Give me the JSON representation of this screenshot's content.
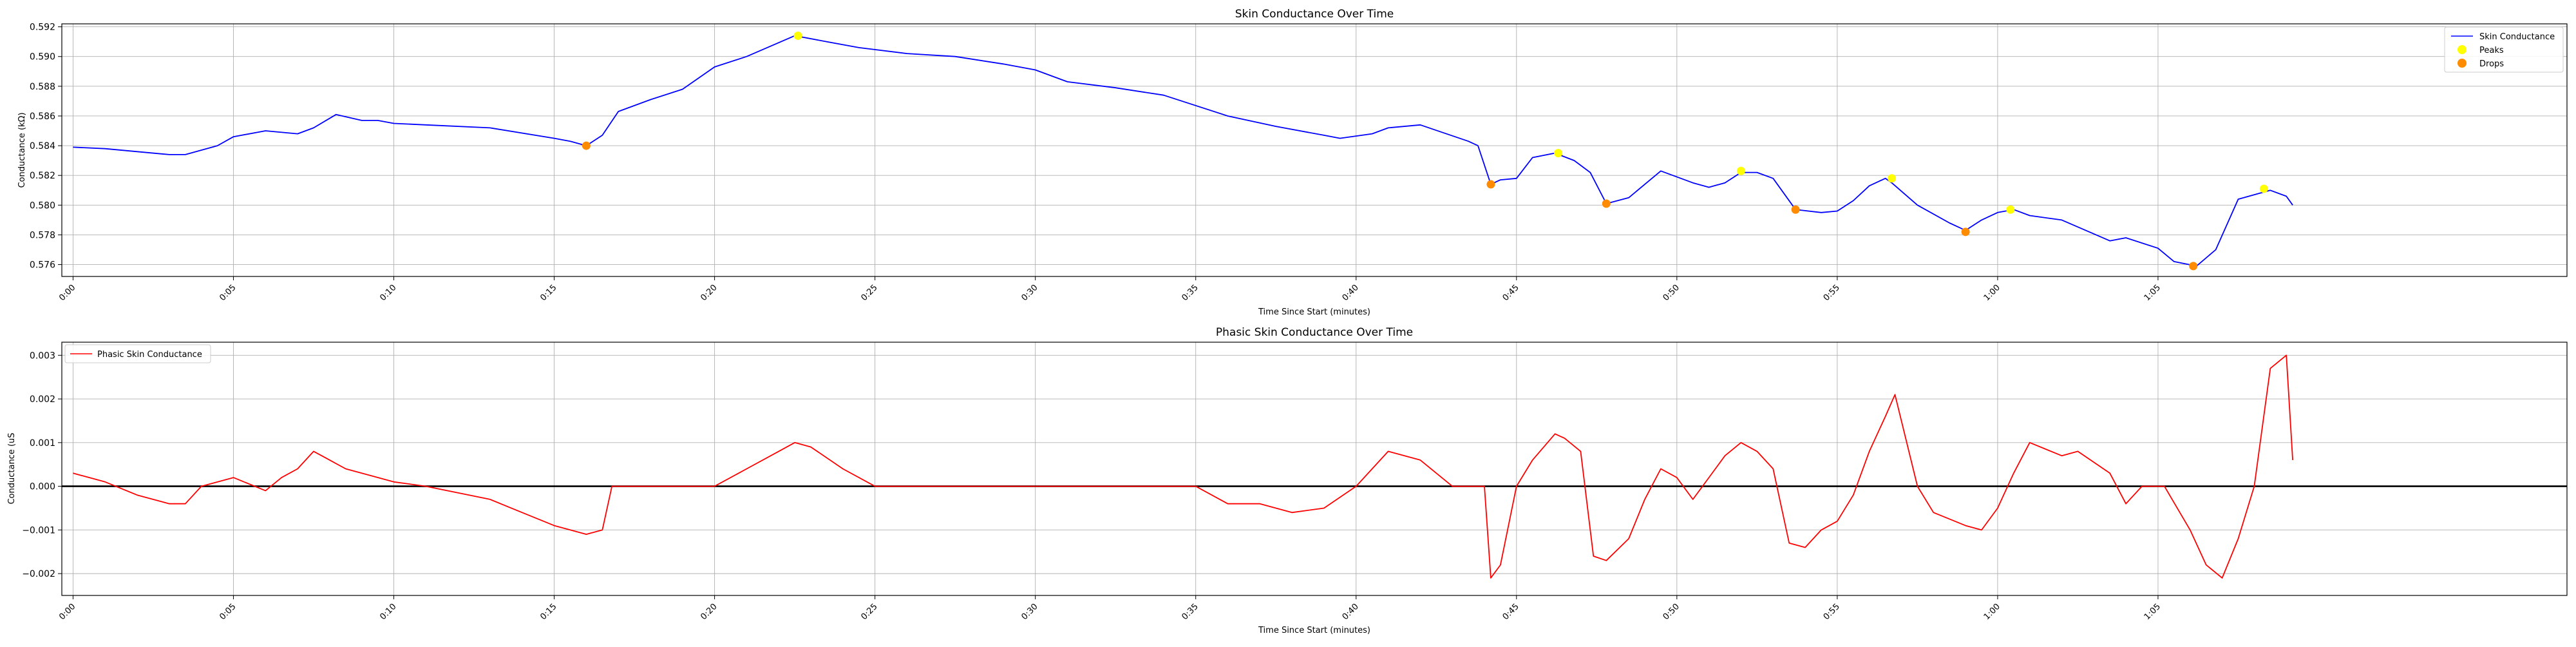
{
  "chart_data": [
    {
      "type": "line",
      "title": "Skin Conductance Over Time",
      "xlabel": "Time Since Start (minutes)",
      "ylabel": "Conductance (kΩ)",
      "xlim": [
        -0.0035,
        0.7775
      ],
      "ylim": [
        0.5752,
        0.5922
      ],
      "x_ticks": [
        0,
        0.05,
        0.1,
        0.15,
        0.2,
        0.25,
        0.3,
        0.35,
        0.4,
        0.45,
        0.5,
        0.55,
        0.6,
        0.65
      ],
      "x_tick_labels": [
        "0:00",
        "0:05",
        "0:10",
        "0:15",
        "0:20",
        "0:25",
        "0:30",
        "0:35",
        "0:40",
        "0:45",
        "0:50",
        "0:55",
        "1:00",
        "1:05"
      ],
      "y_ticks": [
        0.576,
        0.578,
        0.58,
        0.582,
        0.584,
        0.586,
        0.588,
        0.59,
        0.592
      ],
      "y_tick_labels": [
        "0.576",
        "0.578",
        "0.580",
        "0.582",
        "0.584",
        "0.586",
        "0.588",
        "0.590",
        "0.592"
      ],
      "grid": true,
      "legend": "top-right",
      "legend_entries": [
        "Skin Conductance",
        "Peaks",
        "Drops"
      ],
      "colors": {
        "line": "#0000ff",
        "peaks": "#ffff00",
        "drops": "#ff8c00",
        "grid": "#b0b0b0"
      },
      "series": [
        {
          "name": "Skin Conductance",
          "x": [
            0,
            0.01,
            0.02,
            0.03,
            0.035,
            0.045,
            0.05,
            0.06,
            0.07,
            0.075,
            0.082,
            0.09,
            0.095,
            0.1,
            0.11,
            0.13,
            0.15,
            0.155,
            0.16,
            0.165,
            0.17,
            0.18,
            0.19,
            0.2,
            0.21,
            0.225,
            0.235,
            0.245,
            0.26,
            0.275,
            0.29,
            0.3,
            0.31,
            0.325,
            0.34,
            0.36,
            0.375,
            0.39,
            0.395,
            0.405,
            0.41,
            0.42,
            0.435,
            0.438,
            0.442,
            0.445,
            0.45,
            0.455,
            0.462,
            0.468,
            0.473,
            0.478,
            0.485,
            0.495,
            0.505,
            0.51,
            0.515,
            0.52,
            0.525,
            0.53,
            0.537,
            0.545,
            0.55,
            0.555,
            0.56,
            0.565,
            0.567,
            0.575,
            0.585,
            0.59,
            0.595,
            0.6,
            0.605,
            0.61,
            0.62,
            0.635,
            0.64,
            0.65,
            0.655,
            0.662,
            0.668,
            0.675,
            0.685,
            0.69,
            0.692
          ],
          "y": [
            0.5839,
            0.5838,
            0.5836,
            0.5834,
            0.5834,
            0.584,
            0.5846,
            0.585,
            0.5848,
            0.5852,
            0.5861,
            0.5857,
            0.5857,
            0.5855,
            0.5854,
            0.5852,
            0.5845,
            0.5843,
            0.584,
            0.5847,
            0.5863,
            0.5871,
            0.5878,
            0.5893,
            0.59,
            0.5914,
            0.591,
            0.5906,
            0.5902,
            0.59,
            0.5895,
            0.5891,
            0.5883,
            0.5879,
            0.5874,
            0.586,
            0.5853,
            0.5847,
            0.5845,
            0.5848,
            0.5852,
            0.5854,
            0.5843,
            0.584,
            0.5814,
            0.5817,
            0.5818,
            0.5832,
            0.5835,
            0.583,
            0.5822,
            0.5801,
            0.5805,
            0.5823,
            0.5815,
            0.5812,
            0.5815,
            0.5822,
            0.5822,
            0.5818,
            0.5797,
            0.5795,
            0.5796,
            0.5803,
            0.5813,
            0.5818,
            0.5815,
            0.58,
            0.5788,
            0.5783,
            0.579,
            0.5795,
            0.5797,
            0.5793,
            0.579,
            0.5776,
            0.5778,
            0.5771,
            0.5762,
            0.5759,
            0.577,
            0.5804,
            0.581,
            0.5806,
            0.58
          ]
        },
        {
          "name": "Peaks",
          "x": [
            0.226,
            0.463,
            0.52,
            0.567,
            0.604,
            0.683
          ],
          "y": [
            0.5914,
            0.5835,
            0.5823,
            0.5818,
            0.5797,
            0.5811
          ]
        },
        {
          "name": "Drops",
          "x": [
            0.16,
            0.442,
            0.478,
            0.537,
            0.59,
            0.661
          ],
          "y": [
            0.584,
            0.5814,
            0.5801,
            0.5797,
            0.5782,
            0.5759
          ]
        }
      ]
    },
    {
      "type": "line",
      "title": "Phasic Skin Conductance Over Time",
      "xlabel": "Time Since Start (minutes)",
      "ylabel": "Conductance (uS",
      "xlim": [
        -0.0035,
        0.7775
      ],
      "ylim": [
        -0.0025,
        0.0033
      ],
      "x_ticks": [
        0,
        0.05,
        0.1,
        0.15,
        0.2,
        0.25,
        0.3,
        0.35,
        0.4,
        0.45,
        0.5,
        0.55,
        0.6,
        0.65
      ],
      "x_tick_labels": [
        "0:00",
        "0:05",
        "0:10",
        "0:15",
        "0:20",
        "0:25",
        "0:30",
        "0:35",
        "0:40",
        "0:45",
        "0:50",
        "0:55",
        "1:00",
        "1:05"
      ],
      "y_ticks": [
        -0.002,
        -0.001,
        0,
        0.001,
        0.002,
        0.003
      ],
      "y_tick_labels": [
        "−0.002",
        "−0.001",
        "0.000",
        "0.001",
        "0.002",
        "0.003"
      ],
      "grid": true,
      "legend": "top-left",
      "legend_entries": [
        "Phasic Skin Conductance"
      ],
      "reference_line": 0,
      "colors": {
        "line": "#ff0000",
        "zero_line": "#000000",
        "grid": "#b0b0b0"
      },
      "series": [
        {
          "name": "Phasic Skin Conductance",
          "x": [
            0,
            0.01,
            0.02,
            0.03,
            0.035,
            0.04,
            0.05,
            0.06,
            0.065,
            0.07,
            0.075,
            0.08,
            0.085,
            0.09,
            0.1,
            0.11,
            0.13,
            0.14,
            0.15,
            0.16,
            0.165,
            0.168,
            0.17,
            0.2,
            0.21,
            0.22,
            0.225,
            0.23,
            0.24,
            0.25,
            0.3,
            0.35,
            0.36,
            0.37,
            0.38,
            0.39,
            0.4,
            0.41,
            0.42,
            0.43,
            0.44,
            0.442,
            0.445,
            0.45,
            0.455,
            0.462,
            0.465,
            0.47,
            0.474,
            0.478,
            0.485,
            0.49,
            0.495,
            0.5,
            0.505,
            0.51,
            0.515,
            0.52,
            0.525,
            0.53,
            0.535,
            0.54,
            0.545,
            0.55,
            0.555,
            0.56,
            0.565,
            0.568,
            0.575,
            0.58,
            0.59,
            0.595,
            0.6,
            0.605,
            0.61,
            0.62,
            0.625,
            0.635,
            0.64,
            0.645,
            0.652,
            0.66,
            0.665,
            0.67,
            0.675,
            0.68,
            0.685,
            0.69,
            0.692
          ],
          "y": [
            0.0003,
            0.0001,
            -0.0002,
            -0.0004,
            -0.0004,
            0.0,
            0.0002,
            -0.0001,
            0.0002,
            0.0004,
            0.0008,
            0.0006,
            0.0004,
            0.0003,
            0.0001,
            0.0,
            -0.0003,
            -0.0006,
            -0.0009,
            -0.0011,
            -0.001,
            0.0,
            0.0,
            0.0,
            0.0004,
            0.0008,
            0.001,
            0.0009,
            0.0004,
            0.0,
            0.0,
            0.0,
            -0.0004,
            -0.0004,
            -0.0006,
            -0.0005,
            0.0,
            0.0008,
            0.0006,
            0.0,
            0.0,
            -0.0021,
            -0.0018,
            0.0,
            0.0006,
            0.0012,
            0.0011,
            0.0008,
            -0.0016,
            -0.0017,
            -0.0012,
            -0.0003,
            0.0004,
            0.0002,
            -0.0003,
            0.0002,
            0.0007,
            0.001,
            0.0008,
            0.0004,
            -0.0013,
            -0.0014,
            -0.001,
            -0.0008,
            -0.0002,
            0.0008,
            0.0016,
            0.0021,
            0.0,
            -0.0006,
            -0.0009,
            -0.001,
            -0.0005,
            0.0003,
            0.001,
            0.0007,
            0.0008,
            0.0003,
            -0.0004,
            0.0,
            0.0,
            -0.001,
            -0.0018,
            -0.0021,
            -0.0012,
            0.0,
            0.0027,
            0.003,
            0.0006
          ]
        }
      ]
    }
  ]
}
